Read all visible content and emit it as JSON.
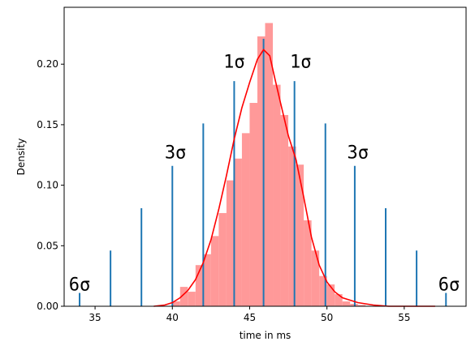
{
  "chart_data": {
    "type": "histogram",
    "xlabel": "time in ms",
    "ylabel": "Density",
    "xlim": [
      33.0,
      59.0
    ],
    "ylim": [
      0.0,
      0.247
    ],
    "xticks": [
      35,
      40,
      45,
      50,
      55
    ],
    "yticks": [
      0.0,
      0.05,
      0.1,
      0.15,
      0.2
    ],
    "ytick_labels": [
      "0.00",
      "0.05",
      "0.10",
      "0.15",
      "0.20"
    ],
    "histogram": {
      "color": "#ff9999",
      "bin_width": 0.5,
      "bins": [
        [
          40.0,
          0.004
        ],
        [
          40.5,
          0.016
        ],
        [
          41.0,
          0.012
        ],
        [
          41.5,
          0.034
        ],
        [
          42.0,
          0.043
        ],
        [
          42.5,
          0.058
        ],
        [
          43.0,
          0.077
        ],
        [
          43.5,
          0.104
        ],
        [
          44.0,
          0.122
        ],
        [
          44.5,
          0.143
        ],
        [
          45.0,
          0.168
        ],
        [
          45.5,
          0.223
        ],
        [
          46.0,
          0.234
        ],
        [
          46.5,
          0.183
        ],
        [
          47.0,
          0.158
        ],
        [
          47.5,
          0.132
        ],
        [
          48.0,
          0.117
        ],
        [
          48.5,
          0.071
        ],
        [
          49.0,
          0.046
        ],
        [
          49.5,
          0.025
        ],
        [
          50.0,
          0.018
        ],
        [
          50.5,
          0.01
        ],
        [
          51.0,
          0.004
        ],
        [
          51.5,
          0.002
        ],
        [
          52.0,
          0.001
        ]
      ]
    },
    "kde": {
      "color": "#ff0000",
      "points": [
        [
          38.8,
          0.0
        ],
        [
          39.5,
          0.001
        ],
        [
          40.0,
          0.003
        ],
        [
          40.5,
          0.007
        ],
        [
          41.0,
          0.013
        ],
        [
          41.5,
          0.022
        ],
        [
          42.0,
          0.036
        ],
        [
          42.5,
          0.055
        ],
        [
          43.0,
          0.08
        ],
        [
          43.5,
          0.108
        ],
        [
          44.0,
          0.138
        ],
        [
          44.5,
          0.164
        ],
        [
          45.0,
          0.185
        ],
        [
          45.5,
          0.204
        ],
        [
          45.9,
          0.212
        ],
        [
          46.3,
          0.207
        ],
        [
          46.6,
          0.19
        ],
        [
          47.0,
          0.168
        ],
        [
          47.5,
          0.141
        ],
        [
          48.0,
          0.121
        ],
        [
          48.5,
          0.09
        ],
        [
          49.0,
          0.057
        ],
        [
          49.5,
          0.034
        ],
        [
          50.0,
          0.02
        ],
        [
          50.5,
          0.012
        ],
        [
          51.0,
          0.007
        ],
        [
          52.0,
          0.003
        ],
        [
          53.0,
          0.001
        ],
        [
          54.0,
          0.0
        ],
        [
          55.0,
          0.0
        ],
        [
          56.0,
          0.0
        ],
        [
          57.0,
          0.0
        ]
      ]
    },
    "sigma_lines": {
      "color": "#1f77b4",
      "lines": [
        [
          34.0,
          0.011
        ],
        [
          36.0,
          0.046
        ],
        [
          38.0,
          0.081
        ],
        [
          40.0,
          0.116
        ],
        [
          42.0,
          0.151
        ],
        [
          44.0,
          0.186
        ],
        [
          45.9,
          0.221
        ],
        [
          47.9,
          0.186
        ],
        [
          49.9,
          0.151
        ],
        [
          51.8,
          0.116
        ],
        [
          53.8,
          0.081
        ],
        [
          55.8,
          0.046
        ],
        [
          57.7,
          0.011
        ]
      ]
    },
    "annotations": [
      {
        "text": "1σ",
        "x": 44.0,
        "y": 0.197
      },
      {
        "text": "1σ",
        "x": 48.3,
        "y": 0.197
      },
      {
        "text": "3σ",
        "x": 40.2,
        "y": 0.122
      },
      {
        "text": "3σ",
        "x": 52.0,
        "y": 0.122
      },
      {
        "text": "6σ",
        "x": 34.0,
        "y": 0.013
      },
      {
        "text": "6σ",
        "x": 57.9,
        "y": 0.013
      }
    ]
  }
}
